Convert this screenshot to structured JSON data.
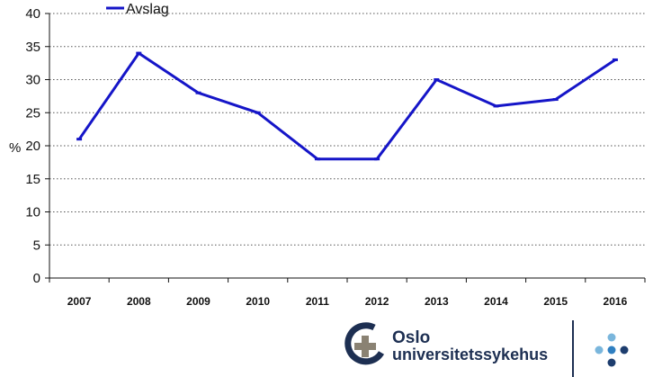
{
  "chart_data": {
    "type": "line",
    "categories": [
      "2007",
      "2008",
      "2009",
      "2010",
      "2011",
      "2012",
      "2013",
      "2014",
      "2015",
      "2016"
    ],
    "series": [
      {
        "name": "Avslag",
        "values": [
          21,
          34,
          28,
          25,
          18,
          18,
          30,
          26,
          27,
          33
        ],
        "color": "#1515c8"
      }
    ],
    "title": "",
    "xlabel": "",
    "ylabel": "%",
    "ylim": [
      0,
      40
    ],
    "yticks": [
      0,
      5,
      10,
      15,
      20,
      25,
      30,
      35,
      40
    ],
    "grid": true,
    "legend": "top-left"
  },
  "logo": {
    "line1": "Oslo",
    "line2": "universitetssykehus",
    "mark_color": "#1d2f52",
    "accent_color": "#8a8273",
    "dot_colors": [
      "#7ab6dc",
      "#2f7fc1",
      "#1d3d6e"
    ]
  }
}
